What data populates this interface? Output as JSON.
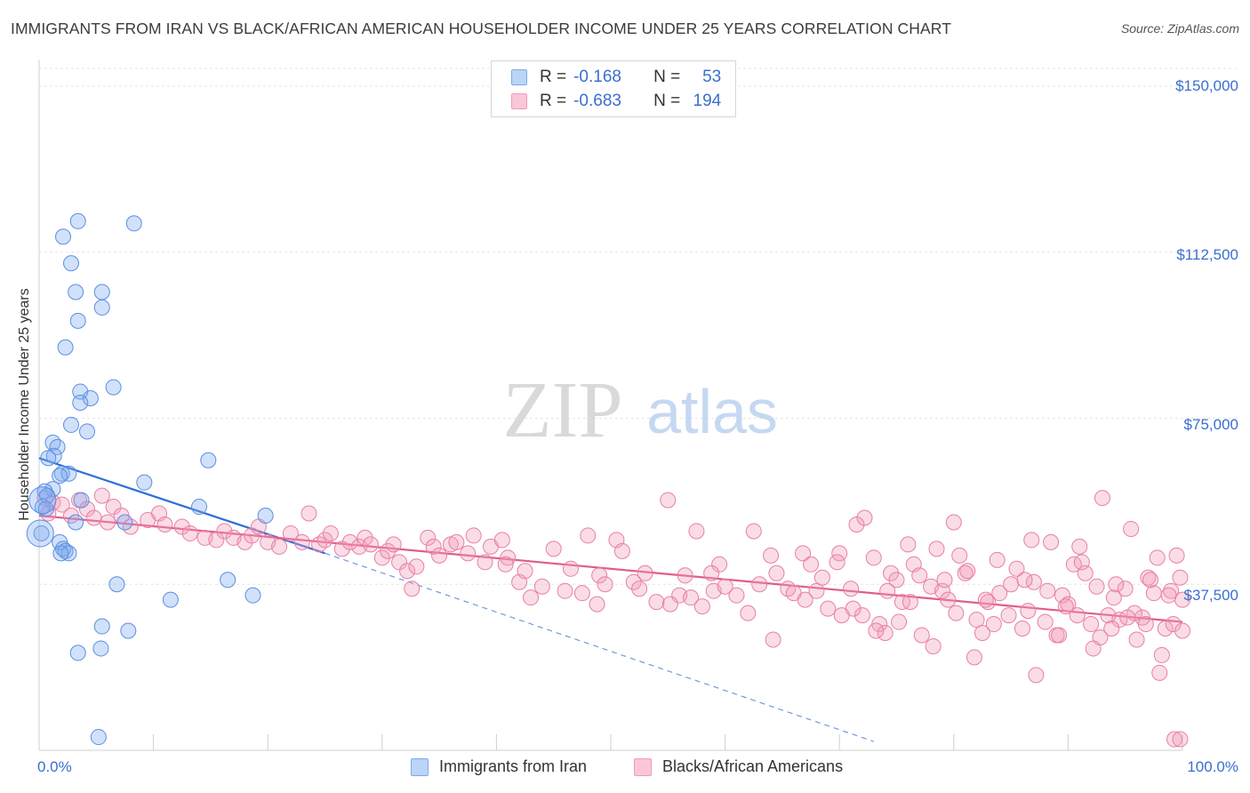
{
  "header": {
    "title": "IMMIGRANTS FROM IRAN VS BLACK/AFRICAN AMERICAN HOUSEHOLDER INCOME UNDER 25 YEARS CORRELATION CHART",
    "source": "Source: ZipAtlas.com"
  },
  "watermark": {
    "zip": "ZIP",
    "atlas": "atlas"
  },
  "legend": {
    "rows": [
      {
        "r_label": "R =",
        "r_value": "-0.168",
        "n_label": "N =",
        "n_value": "53",
        "color": "#7aaaf0"
      },
      {
        "r_label": "R =",
        "r_value": "-0.683",
        "n_label": "N =",
        "n_value": "194",
        "color": "#f29ab8"
      }
    ]
  },
  "bottom_legend": {
    "series1": "Immigrants from Iran",
    "series2": "Blacks/African Americans"
  },
  "chart_data": {
    "type": "scatter",
    "title": "IMMIGRANTS FROM IRAN VS BLACK/AFRICAN AMERICAN HOUSEHOLDER INCOME UNDER 25 YEARS CORRELATION CHART",
    "xlabel": "",
    "ylabel": "Householder Income Under 25 years",
    "xlim": [
      0,
      100
    ],
    "ylim": [
      0,
      156000
    ],
    "x_tick_labels": {
      "min": "0.0%",
      "max": "100.0%"
    },
    "y_ticks": [
      {
        "value": 37500,
        "label": "$37,500"
      },
      {
        "value": 75000,
        "label": "$75,000"
      },
      {
        "value": 112500,
        "label": "$112,500"
      },
      {
        "value": 150000,
        "label": "$150,000"
      }
    ],
    "grid": true,
    "series": [
      {
        "name": "Immigrants from Iran",
        "color": "#7aaaf0",
        "stroke": "#5b8fe0",
        "trend": {
          "x0": 0,
          "y0": 66000,
          "x1": 25,
          "y1": 44500,
          "dashed_to_x": 73,
          "dashed_to_y": 2000,
          "color": "#2f6fd6"
        },
        "points": [
          [
            3.4,
            119500
          ],
          [
            8.3,
            119000
          ],
          [
            2.1,
            116000
          ],
          [
            2.8,
            110000
          ],
          [
            3.2,
            103500
          ],
          [
            5.5,
            103500
          ],
          [
            5.5,
            100000
          ],
          [
            3.4,
            97000
          ],
          [
            2.3,
            91000
          ],
          [
            3.6,
            81000
          ],
          [
            6.5,
            82000
          ],
          [
            4.5,
            79500
          ],
          [
            3.6,
            78500
          ],
          [
            2.8,
            73500
          ],
          [
            4.2,
            72000
          ],
          [
            1.2,
            69500
          ],
          [
            1.6,
            68500
          ],
          [
            1.3,
            66500
          ],
          [
            0.8,
            66000
          ],
          [
            14.8,
            65500
          ],
          [
            2.0,
            62500
          ],
          [
            2.6,
            62500
          ],
          [
            1.8,
            62000
          ],
          [
            9.2,
            60500
          ],
          [
            1.2,
            59000
          ],
          [
            0.5,
            58500
          ],
          [
            0.7,
            57500
          ],
          [
            3.7,
            56500
          ],
          [
            14.0,
            55000
          ],
          [
            0.3,
            55000
          ],
          [
            0.6,
            54500
          ],
          [
            19.8,
            53000
          ],
          [
            7.5,
            51500
          ],
          [
            3.2,
            51500
          ],
          [
            0.2,
            49000
          ],
          [
            1.8,
            47000
          ],
          [
            2.1,
            45500
          ],
          [
            2.3,
            45000
          ],
          [
            2.6,
            44500
          ],
          [
            1.9,
            44500
          ],
          [
            16.5,
            38500
          ],
          [
            6.8,
            37500
          ],
          [
            18.7,
            35000
          ],
          [
            11.5,
            34000
          ],
          [
            5.5,
            28000
          ],
          [
            7.8,
            27000
          ],
          [
            5.4,
            23000
          ],
          [
            3.4,
            22000
          ],
          [
            5.2,
            3000
          ]
        ],
        "big_points": [
          [
            0.1,
            49000
          ],
          [
            0.3,
            56500
          ]
        ]
      },
      {
        "name": "Blacks/African Americans",
        "color": "#f29ab8",
        "stroke": "#e87fa5",
        "trend": {
          "x0": 0,
          "y0": 53000,
          "x1": 100,
          "y1": 29000,
          "color": "#e05c8e"
        },
        "points": [
          [
            0.5,
            57000
          ],
          [
            1.2,
            56000
          ],
          [
            2.0,
            55500
          ],
          [
            3.5,
            56500
          ],
          [
            4.2,
            54500
          ],
          [
            5.5,
            57500
          ],
          [
            6.5,
            55000
          ],
          [
            7.2,
            53000
          ],
          [
            0.8,
            53500
          ],
          [
            2.8,
            53000
          ],
          [
            4.8,
            52500
          ],
          [
            6.0,
            51500
          ],
          [
            8.0,
            50500
          ],
          [
            9.5,
            52000
          ],
          [
            10.5,
            53500
          ],
          [
            11.0,
            51000
          ],
          [
            12.5,
            50500
          ],
          [
            13.2,
            49000
          ],
          [
            14.5,
            48000
          ],
          [
            15.5,
            47500
          ],
          [
            16.2,
            49500
          ],
          [
            17.0,
            48000
          ],
          [
            18.0,
            47000
          ],
          [
            18.6,
            48500
          ],
          [
            19.2,
            50500
          ],
          [
            20.0,
            47000
          ],
          [
            21.0,
            46000
          ],
          [
            22.0,
            49000
          ],
          [
            23.0,
            47000
          ],
          [
            23.6,
            53500
          ],
          [
            24.5,
            46500
          ],
          [
            25.0,
            47500
          ],
          [
            25.5,
            49000
          ],
          [
            26.5,
            45500
          ],
          [
            27.2,
            47000
          ],
          [
            28.0,
            46000
          ],
          [
            28.5,
            48000
          ],
          [
            29.0,
            46500
          ],
          [
            30.0,
            43500
          ],
          [
            30.5,
            45000
          ],
          [
            31.0,
            46500
          ],
          [
            31.5,
            42500
          ],
          [
            32.2,
            40500
          ],
          [
            33.0,
            41500
          ],
          [
            34.0,
            48000
          ],
          [
            34.5,
            46000
          ],
          [
            35.0,
            44000
          ],
          [
            36.0,
            46500
          ],
          [
            36.5,
            47000
          ],
          [
            37.5,
            44500
          ],
          [
            38.0,
            48500
          ],
          [
            39.0,
            42500
          ],
          [
            39.5,
            46000
          ],
          [
            40.5,
            47500
          ],
          [
            41.0,
            43500
          ],
          [
            42.0,
            38000
          ],
          [
            42.5,
            40500
          ],
          [
            43.0,
            34500
          ],
          [
            44.0,
            37000
          ],
          [
            45.0,
            45500
          ],
          [
            46.0,
            36000
          ],
          [
            46.5,
            41000
          ],
          [
            47.5,
            35500
          ],
          [
            48.0,
            48500
          ],
          [
            49.0,
            39500
          ],
          [
            49.5,
            37500
          ],
          [
            50.5,
            47500
          ],
          [
            51.0,
            45000
          ],
          [
            52.0,
            38000
          ],
          [
            52.5,
            36500
          ],
          [
            53.0,
            40000
          ],
          [
            54.0,
            33500
          ],
          [
            55.0,
            56500
          ],
          [
            56.0,
            35000
          ],
          [
            56.5,
            39500
          ],
          [
            57.0,
            34500
          ],
          [
            57.5,
            49500
          ],
          [
            58.0,
            32500
          ],
          [
            59.0,
            36000
          ],
          [
            59.5,
            42000
          ],
          [
            60.0,
            37000
          ],
          [
            61.0,
            35000
          ],
          [
            62.0,
            31000
          ],
          [
            62.5,
            49500
          ],
          [
            63.0,
            37500
          ],
          [
            64.0,
            44000
          ],
          [
            64.5,
            40000
          ],
          [
            65.5,
            36500
          ],
          [
            66.0,
            35500
          ],
          [
            67.0,
            34000
          ],
          [
            67.5,
            42000
          ],
          [
            68.0,
            36000
          ],
          [
            68.5,
            39000
          ],
          [
            69.0,
            32000
          ],
          [
            70.0,
            44500
          ],
          [
            71.0,
            36500
          ],
          [
            71.5,
            51000
          ],
          [
            72.0,
            30500
          ],
          [
            73.0,
            43500
          ],
          [
            73.5,
            28500
          ],
          [
            74.0,
            26500
          ],
          [
            74.5,
            40000
          ],
          [
            75.0,
            38500
          ],
          [
            75.5,
            33500
          ],
          [
            76.0,
            46500
          ],
          [
            76.5,
            42000
          ],
          [
            77.0,
            39500
          ],
          [
            78.0,
            37000
          ],
          [
            78.5,
            45500
          ],
          [
            79.0,
            36000
          ],
          [
            79.5,
            34000
          ],
          [
            80.0,
            51500
          ],
          [
            80.5,
            44000
          ],
          [
            81.0,
            40000
          ],
          [
            82.0,
            29500
          ],
          [
            82.5,
            26500
          ],
          [
            83.0,
            33500
          ],
          [
            83.5,
            28500
          ],
          [
            84.0,
            35500
          ],
          [
            85.0,
            37500
          ],
          [
            85.5,
            41000
          ],
          [
            86.0,
            27500
          ],
          [
            86.5,
            31500
          ],
          [
            87.0,
            38000
          ],
          [
            88.0,
            29000
          ],
          [
            88.5,
            47000
          ],
          [
            89.0,
            26000
          ],
          [
            89.5,
            35000
          ],
          [
            90.0,
            33000
          ],
          [
            90.5,
            42000
          ],
          [
            91.0,
            46000
          ],
          [
            91.5,
            40000
          ],
          [
            92.0,
            28500
          ],
          [
            92.5,
            37000
          ],
          [
            93.0,
            57000
          ],
          [
            93.5,
            30500
          ],
          [
            94.0,
            34500
          ],
          [
            94.5,
            29500
          ],
          [
            95.0,
            36500
          ],
          [
            95.5,
            50000
          ],
          [
            96.0,
            25000
          ],
          [
            96.5,
            30000
          ],
          [
            97.0,
            39000
          ],
          [
            97.5,
            35500
          ],
          [
            98.0,
            17500
          ],
          [
            98.5,
            27500
          ],
          [
            99.0,
            36000
          ],
          [
            99.5,
            44000
          ],
          [
            100.0,
            34000
          ],
          [
            86.8,
            47500
          ],
          [
            88.2,
            36000
          ],
          [
            89.8,
            32500
          ],
          [
            91.2,
            42500
          ],
          [
            92.8,
            25500
          ],
          [
            94.2,
            37500
          ],
          [
            95.8,
            31000
          ],
          [
            96.8,
            28500
          ],
          [
            97.8,
            43500
          ],
          [
            98.8,
            35000
          ],
          [
            99.2,
            28500
          ],
          [
            99.8,
            39000
          ],
          [
            100.0,
            27000
          ],
          [
            98.2,
            21500
          ],
          [
            97.2,
            38500
          ],
          [
            95.2,
            30000
          ],
          [
            93.8,
            27500
          ],
          [
            92.2,
            23000
          ],
          [
            90.8,
            30500
          ],
          [
            89.2,
            26000
          ],
          [
            87.2,
            17000
          ],
          [
            86.2,
            38500
          ],
          [
            84.8,
            30500
          ],
          [
            83.8,
            43000
          ],
          [
            82.8,
            34000
          ],
          [
            81.8,
            21000
          ],
          [
            81.2,
            40500
          ],
          [
            80.2,
            31000
          ],
          [
            79.2,
            38500
          ],
          [
            78.2,
            23500
          ],
          [
            77.2,
            26000
          ],
          [
            76.2,
            33500
          ],
          [
            75.2,
            29000
          ],
          [
            74.2,
            36000
          ],
          [
            73.2,
            27000
          ],
          [
            72.2,
            52500
          ],
          [
            71.2,
            32000
          ],
          [
            70.2,
            30500
          ],
          [
            99.3,
            2500
          ],
          [
            99.8,
            2500
          ],
          [
            64.2,
            25000
          ],
          [
            55.2,
            33000
          ],
          [
            48.8,
            33000
          ],
          [
            32.6,
            36500
          ],
          [
            40.8,
            42000
          ],
          [
            58.8,
            40000
          ],
          [
            66.8,
            44500
          ],
          [
            69.8,
            42500
          ]
        ]
      }
    ]
  }
}
